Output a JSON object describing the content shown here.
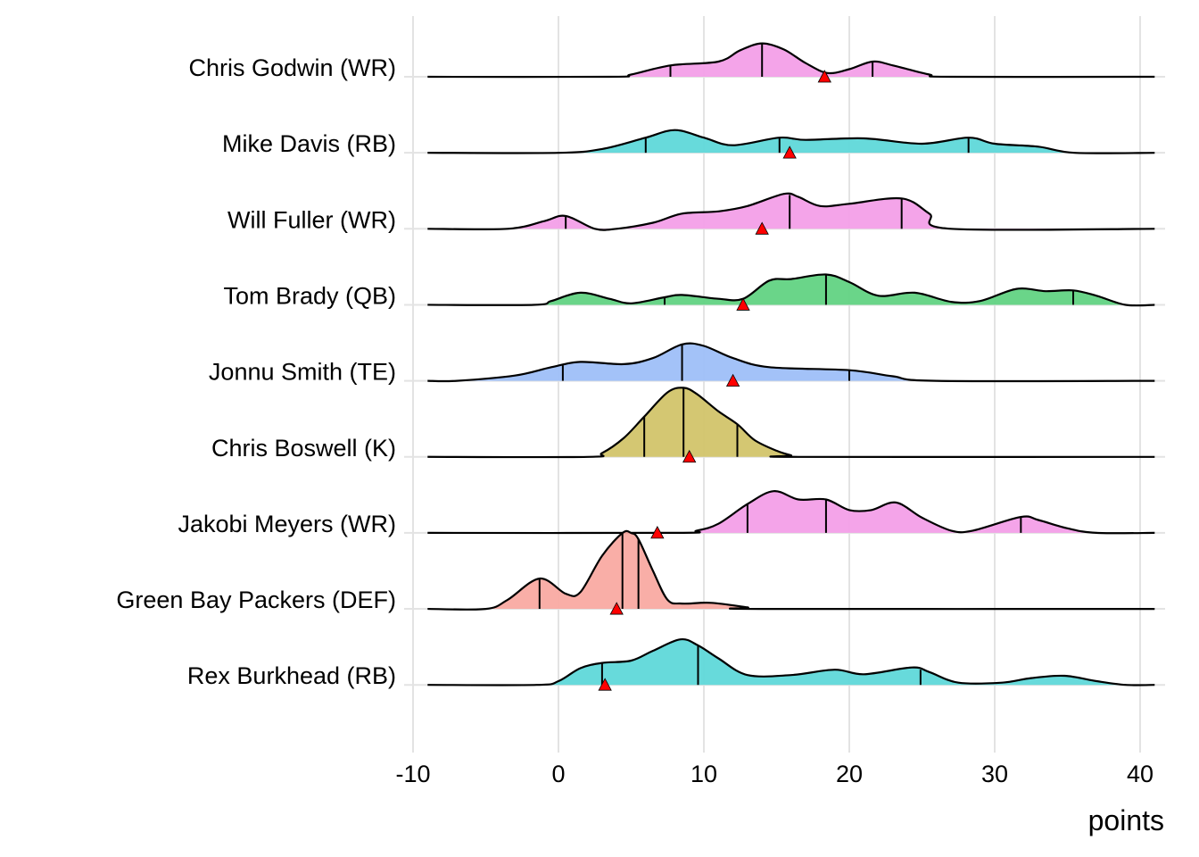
{
  "chart_data": {
    "type": "ridgeline-density",
    "title": "",
    "xlabel": "points",
    "ylabel": "",
    "xlim": [
      -10,
      41
    ],
    "x_ticks": [
      -10,
      0,
      10,
      20,
      30,
      40
    ],
    "x_tick_labels": [
      "-10",
      "0",
      "10",
      "20",
      "30",
      "40"
    ],
    "grid": "vertical major gridlines, light gray",
    "marker": {
      "shape": "triangle",
      "color": "#ff0000",
      "meaning": "projection"
    },
    "series": [
      {
        "name": "Chris Godwin (WR)",
        "color": "#f39fe8",
        "quantiles": [
          7.7,
          14.0,
          21.6
        ],
        "marker_value": 18.3,
        "density": [
          [
            -9,
            0
          ],
          [
            3.5,
            0
          ],
          [
            5,
            0.03
          ],
          [
            7.7,
            0.15
          ],
          [
            11,
            0.2
          ],
          [
            12.5,
            0.35
          ],
          [
            14,
            0.44
          ],
          [
            15.5,
            0.36
          ],
          [
            17,
            0.18
          ],
          [
            18.5,
            0.05
          ],
          [
            20,
            0.1
          ],
          [
            21.6,
            0.2
          ],
          [
            23,
            0.15
          ],
          [
            25.5,
            0.03
          ],
          [
            27,
            0
          ],
          [
            41,
            0
          ]
        ]
      },
      {
        "name": "Mike Davis (RB)",
        "color": "#5fd8d9",
        "quantiles": [
          6.0,
          15.2,
          28.2
        ],
        "marker_value": 15.9,
        "density": [
          [
            -9,
            0
          ],
          [
            0,
            0
          ],
          [
            3,
            0.05
          ],
          [
            6,
            0.2
          ],
          [
            8,
            0.3
          ],
          [
            10,
            0.2
          ],
          [
            12,
            0.1
          ],
          [
            15.2,
            0.2
          ],
          [
            17,
            0.17
          ],
          [
            21,
            0.19
          ],
          [
            25,
            0.12
          ],
          [
            28.2,
            0.2
          ],
          [
            30,
            0.12
          ],
          [
            33,
            0.08
          ],
          [
            35.5,
            0
          ],
          [
            41,
            0
          ]
        ]
      },
      {
        "name": "Will Fuller (WR)",
        "color": "#f39fe8",
        "quantiles": [
          0.5,
          15.9,
          23.6
        ],
        "marker_value": 14.0,
        "density": [
          [
            -9,
            0
          ],
          [
            -3.5,
            0
          ],
          [
            -1,
            0.1
          ],
          [
            0.5,
            0.17
          ],
          [
            2.5,
            0.0
          ],
          [
            4,
            0
          ],
          [
            6.5,
            0.08
          ],
          [
            8.5,
            0.2
          ],
          [
            11,
            0.23
          ],
          [
            13,
            0.3
          ],
          [
            15.5,
            0.46
          ],
          [
            16.5,
            0.42
          ],
          [
            18,
            0.3
          ],
          [
            20,
            0.33
          ],
          [
            23.6,
            0.4
          ],
          [
            25.5,
            0.2
          ],
          [
            27,
            0
          ],
          [
            41,
            0
          ]
        ]
      },
      {
        "name": "Tom Brady (QB)",
        "color": "#62d383",
        "quantiles": [
          7.3,
          18.4,
          35.4
        ],
        "marker_value": 12.7,
        "density": [
          [
            -9,
            0
          ],
          [
            -1.7,
            0
          ],
          [
            -0.5,
            0.05
          ],
          [
            1.5,
            0.16
          ],
          [
            3.5,
            0.08
          ],
          [
            5,
            0.02
          ],
          [
            7.3,
            0.1
          ],
          [
            8.5,
            0.13
          ],
          [
            11,
            0.08
          ],
          [
            12.7,
            0.08
          ],
          [
            14.5,
            0.32
          ],
          [
            16,
            0.34
          ],
          [
            18.4,
            0.4
          ],
          [
            20,
            0.3
          ],
          [
            22,
            0.12
          ],
          [
            24.5,
            0.16
          ],
          [
            27,
            0.04
          ],
          [
            29,
            0.05
          ],
          [
            31.5,
            0.21
          ],
          [
            33.5,
            0.18
          ],
          [
            35.4,
            0.19
          ],
          [
            37,
            0.12
          ],
          [
            39,
            0
          ],
          [
            41,
            0
          ]
        ]
      },
      {
        "name": "Jonnu Smith (TE)",
        "color": "#9ebff8",
        "quantiles": [
          0.3,
          8.5,
          20.0
        ],
        "marker_value": 12.0,
        "density": [
          [
            -9,
            0
          ],
          [
            -7,
            0
          ],
          [
            -3,
            0.07
          ],
          [
            -0.5,
            0.18
          ],
          [
            1.5,
            0.25
          ],
          [
            4.5,
            0.22
          ],
          [
            6.5,
            0.3
          ],
          [
            8.5,
            0.48
          ],
          [
            10,
            0.46
          ],
          [
            12,
            0.3
          ],
          [
            14.5,
            0.18
          ],
          [
            20,
            0.14
          ],
          [
            23,
            0.06
          ],
          [
            26,
            0
          ],
          [
            41,
            0
          ]
        ]
      },
      {
        "name": "Chris Boswell (K)",
        "color": "#d2c46a",
        "quantiles": [
          5.9,
          8.6,
          12.3
        ],
        "marker_value": 9.0,
        "density": [
          [
            -9,
            0
          ],
          [
            2,
            0
          ],
          [
            3,
            0.05
          ],
          [
            4.5,
            0.25
          ],
          [
            5.9,
            0.53
          ],
          [
            7.5,
            0.85
          ],
          [
            8.6,
            0.91
          ],
          [
            9.5,
            0.83
          ],
          [
            11,
            0.6
          ],
          [
            12.3,
            0.43
          ],
          [
            13.5,
            0.22
          ],
          [
            15,
            0.08
          ],
          [
            16,
            0.02
          ],
          [
            16.5,
            0
          ],
          [
            41,
            0
          ]
        ]
      },
      {
        "name": "Jakobi Meyers (WR)",
        "color": "#f39fe8",
        "quantiles": [
          13.0,
          18.4,
          31.8
        ],
        "marker_value": 6.8,
        "density": [
          [
            -9,
            0
          ],
          [
            8,
            0
          ],
          [
            9.5,
            0.03
          ],
          [
            11,
            0.12
          ],
          [
            13,
            0.38
          ],
          [
            14.8,
            0.55
          ],
          [
            16.5,
            0.44
          ],
          [
            18.4,
            0.44
          ],
          [
            20,
            0.3
          ],
          [
            21.5,
            0.3
          ],
          [
            23.2,
            0.4
          ],
          [
            25,
            0.2
          ],
          [
            27,
            0.03
          ],
          [
            28.5,
            0.03
          ],
          [
            31.8,
            0.21
          ],
          [
            33,
            0.17
          ],
          [
            35,
            0.06
          ],
          [
            37,
            0
          ],
          [
            41,
            0
          ]
        ]
      },
      {
        "name": "Green Bay Packers (DEF)",
        "color": "#f9aaa2",
        "quantiles": [
          -1.3,
          4.4,
          5.5
        ],
        "marker_value": 4.0,
        "density": [
          [
            -9,
            0
          ],
          [
            -5,
            0
          ],
          [
            -3.5,
            0.12
          ],
          [
            -1.3,
            0.4
          ],
          [
            0.5,
            0.2
          ],
          [
            1.5,
            0.22
          ],
          [
            3,
            0.7
          ],
          [
            4.4,
            1.0
          ],
          [
            5,
            1.0
          ],
          [
            5.5,
            0.92
          ],
          [
            6.5,
            0.5
          ],
          [
            7.5,
            0.12
          ],
          [
            8.5,
            0.07
          ],
          [
            10.5,
            0.08
          ],
          [
            13,
            0.02
          ],
          [
            14,
            0
          ],
          [
            41,
            0
          ]
        ]
      },
      {
        "name": "Rex Burkhead (RB)",
        "color": "#5fd8d9",
        "quantiles": [
          3.0,
          9.6,
          24.9
        ],
        "marker_value": 3.2,
        "density": [
          [
            -9,
            0
          ],
          [
            -1.5,
            0
          ],
          [
            0,
            0.05
          ],
          [
            1.5,
            0.22
          ],
          [
            3,
            0.29
          ],
          [
            5,
            0.32
          ],
          [
            6.5,
            0.45
          ],
          [
            8.4,
            0.6
          ],
          [
            9.6,
            0.52
          ],
          [
            11,
            0.35
          ],
          [
            13,
            0.13
          ],
          [
            16,
            0.13
          ],
          [
            19,
            0.2
          ],
          [
            21,
            0.14
          ],
          [
            24.3,
            0.23
          ],
          [
            25.5,
            0.17
          ],
          [
            27.5,
            0.03
          ],
          [
            30.5,
            0.03
          ],
          [
            32.5,
            0.09
          ],
          [
            34.8,
            0.12
          ],
          [
            37,
            0.05
          ],
          [
            39,
            0.0
          ],
          [
            41,
            0
          ]
        ]
      }
    ]
  }
}
